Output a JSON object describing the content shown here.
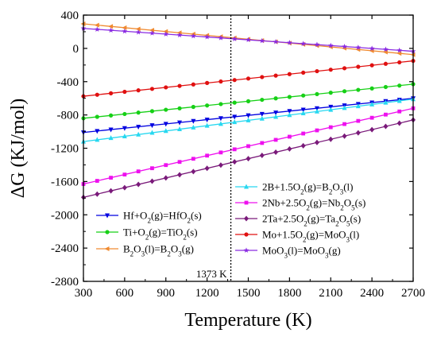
{
  "chart_data": {
    "type": "line",
    "title": "",
    "xlabel": "Temperature (K)",
    "ylabel": "ΔG (KJ/mol)",
    "xlim": [
      300,
      2700
    ],
    "ylim": [
      -2800,
      400
    ],
    "xticks": [
      300,
      600,
      900,
      1200,
      1500,
      1800,
      2100,
      2400,
      2700
    ],
    "yticks": [
      400,
      0,
      -400,
      -800,
      -1200,
      -1600,
      -2000,
      -2400,
      -2800
    ],
    "grid": false,
    "annotation": {
      "x": 1373,
      "label": "1373 K",
      "style": "dotted vertical line"
    },
    "x": [
      300,
      2700
    ],
    "series": [
      {
        "name": "Hf+O₂(g)=HfO₂(s)",
        "legend_parts": [
          [
            "Hf+O",
            ""
          ],
          [
            "2",
            "sub"
          ],
          [
            "(g)=HfO",
            ""
          ],
          [
            "2",
            "sub"
          ],
          [
            "(s)",
            ""
          ]
        ],
        "color": "#0000e0",
        "marker": "triangle-down",
        "values": [
          -1010,
          -600
        ]
      },
      {
        "name": "Ti+O₂(g)=TiO₂(s)",
        "legend_parts": [
          [
            "Ti+O",
            ""
          ],
          [
            "2",
            "sub"
          ],
          [
            "(g)=TiO",
            ""
          ],
          [
            "2",
            "sub"
          ],
          [
            "(s)",
            ""
          ]
        ],
        "color": "#16d016",
        "marker": "circle",
        "values": [
          -840,
          -430
        ]
      },
      {
        "name": "B₂O₃(l)=B₂O₃(g)",
        "legend_parts": [
          [
            "B",
            ""
          ],
          [
            "2",
            "sub"
          ],
          [
            "O",
            ""
          ],
          [
            "3",
            "sub"
          ],
          [
            "(l)=B",
            ""
          ],
          [
            "2",
            "sub"
          ],
          [
            "O",
            ""
          ],
          [
            "3",
            "sub"
          ],
          [
            "(g)",
            ""
          ]
        ],
        "color": "#f08a30",
        "marker": "triangle-left",
        "values": [
          295,
          -75
        ]
      },
      {
        "name": "2B+1.5O₂(g)=B₂O₃(l)",
        "legend_parts": [
          [
            "2B+1.5O",
            ""
          ],
          [
            "2",
            "sub"
          ],
          [
            "(g)=B",
            ""
          ],
          [
            "2",
            "sub"
          ],
          [
            "O",
            ""
          ],
          [
            "3",
            "sub"
          ],
          [
            "(l)",
            ""
          ]
        ],
        "color": "#28d8f0",
        "marker": "triangle-up",
        "values": [
          -1120,
          -610
        ]
      },
      {
        "name": "2Nb+2.5O₂(g)=Nb₂O₅(s)",
        "legend_parts": [
          [
            "2Nb+2.5O",
            ""
          ],
          [
            "2",
            "sub"
          ],
          [
            "(g)=Nb",
            ""
          ],
          [
            "2",
            "sub"
          ],
          [
            "O",
            ""
          ],
          [
            "5",
            "sub"
          ],
          [
            "(s)",
            ""
          ]
        ],
        "color": "#ee10ee",
        "marker": "square",
        "values": [
          -1630,
          -720
        ]
      },
      {
        "name": "2Ta+2.5O₂(g)=Ta₂O₅(s)",
        "legend_parts": [
          [
            "2Ta+2.5O",
            ""
          ],
          [
            "2",
            "sub"
          ],
          [
            "(g)=Ta",
            ""
          ],
          [
            "2",
            "sub"
          ],
          [
            "O",
            ""
          ],
          [
            "5",
            "sub"
          ],
          [
            "(s)",
            ""
          ]
        ],
        "color": "#7a1a7a",
        "marker": "diamond",
        "values": [
          -1790,
          -860
        ]
      },
      {
        "name": "Mo+1.5O₂(g)=MoO₃(l)",
        "legend_parts": [
          [
            "Mo+1.5O",
            ""
          ],
          [
            "2",
            "sub"
          ],
          [
            "(g)=MoO",
            ""
          ],
          [
            "3",
            "sub"
          ],
          [
            "(l)",
            ""
          ]
        ],
        "color": "#e01010",
        "marker": "circle",
        "values": [
          -575,
          -150
        ]
      },
      {
        "name": "MoO₃(l)=MoO₃(g)",
        "legend_parts": [
          [
            "MoO",
            ""
          ],
          [
            "3",
            "sub"
          ],
          [
            "(l)=MoO",
            ""
          ],
          [
            "3",
            "sub"
          ],
          [
            "(g)",
            ""
          ]
        ],
        "color": "#8a2be2",
        "marker": "star",
        "values": [
          240,
          -35
        ]
      }
    ],
    "legend": {
      "columns": 2,
      "placement": "lower-center"
    }
  }
}
